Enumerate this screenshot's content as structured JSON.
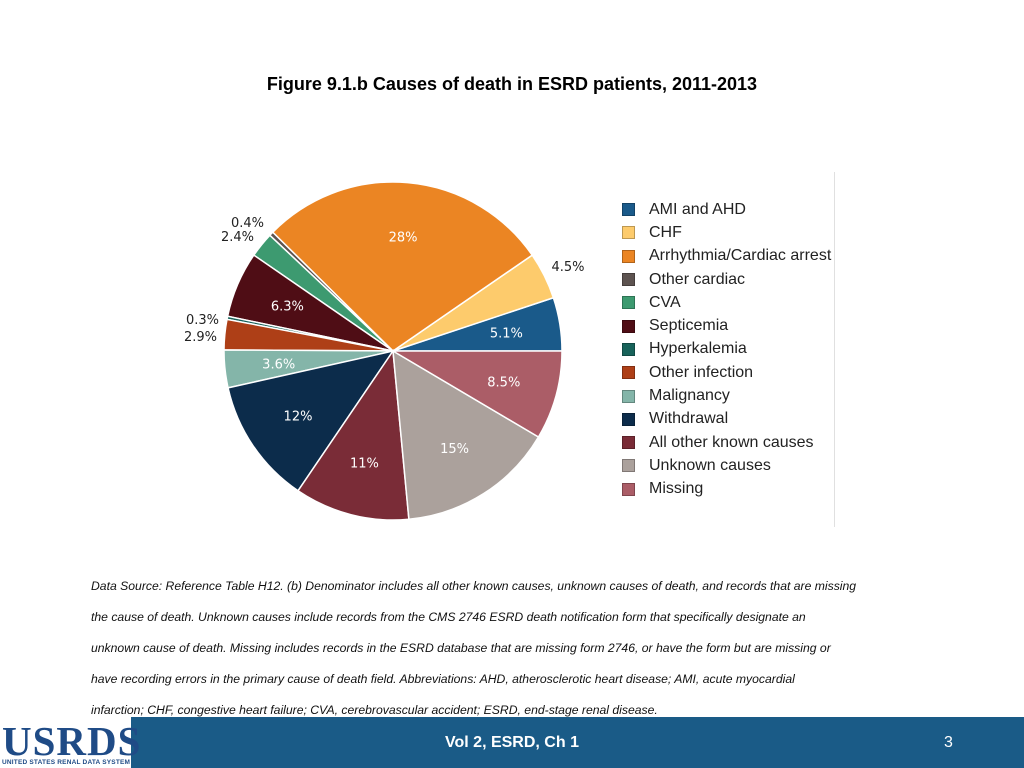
{
  "title": "Figure 9.1.b Causes of death in ESRD patients, 2011-2013",
  "chart_data": {
    "type": "pie",
    "title": "Figure 9.1.b Causes of death in ESRD patients, 2011-2013",
    "legend_position": "right",
    "slices": [
      {
        "name": "AMI and AHD",
        "value": 5.1,
        "label": "5.1%",
        "color": "#1a5a8a",
        "label_color": "#ffffff"
      },
      {
        "name": "CHF",
        "value": 4.5,
        "label": "4.5%",
        "color": "#fdcb6c",
        "label_color": "#222222"
      },
      {
        "name": "Arrhythmia/Cardiac arrest",
        "value": 28,
        "label": "28%",
        "color": "#eb8523",
        "label_color": "#ffffff"
      },
      {
        "name": "Other cardiac",
        "value": 0.4,
        "label": "0.4%",
        "color": "#5d5350",
        "label_color": "#222222"
      },
      {
        "name": "CVA",
        "value": 2.4,
        "label": "2.4%",
        "color": "#3d9a70",
        "label_color": "#222222"
      },
      {
        "name": "Septicemia",
        "value": 6.3,
        "label": "6.3%",
        "color": "#4f0d15",
        "label_color": "#ffffff"
      },
      {
        "name": "Hyperkalemia",
        "value": 0.3,
        "label": "0.3%",
        "color": "#17625a",
        "label_color": "#222222"
      },
      {
        "name": "Other infection",
        "value": 2.9,
        "label": "2.9%",
        "color": "#ae3f17",
        "label_color": "#222222"
      },
      {
        "name": "Malignancy",
        "value": 3.6,
        "label": "3.6%",
        "color": "#84b5a9",
        "label_color": "#ffffff"
      },
      {
        "name": "Withdrawal",
        "value": 12,
        "label": "12%",
        "color": "#0c2c4b",
        "label_color": "#ffffff"
      },
      {
        "name": "All other known causes",
        "value": 11,
        "label": "11%",
        "color": "#7a2c37",
        "label_color": "#ffffff"
      },
      {
        "name": "Unknown causes",
        "value": 15,
        "label": "15%",
        "color": "#aba19c",
        "label_color": "#ffffff"
      },
      {
        "name": "Missing",
        "value": 8.5,
        "label": "8.5%",
        "color": "#ab5d67",
        "label_color": "#ffffff"
      }
    ]
  },
  "note_lines": [
    "Data Source: Reference Table H12. (b) Denominator includes all other known causes, unknown causes of death, and records that are missing",
    "the cause of death. Unknown causes include records from the CMS 2746 ESRD death notification form that specifically designate an",
    "unknown cause of death. Missing includes records in the ESRD database that are missing form 2746, or have the form but are missing or",
    "have recording errors in the primary cause of death field. Abbreviations: AHD, atherosclerotic heart disease; AMI, acute myocardial",
    "infarction; CHF, congestive heart failure; CVA, cerebrovascular accident; ESRD, end-stage renal disease."
  ],
  "footer": {
    "logo_text": "USRDS",
    "logo_subtext": "UNITED STATES RENAL DATA SYSTEM",
    "center_text": "Vol 2, ESRD, Ch 1",
    "page_number": "3"
  }
}
